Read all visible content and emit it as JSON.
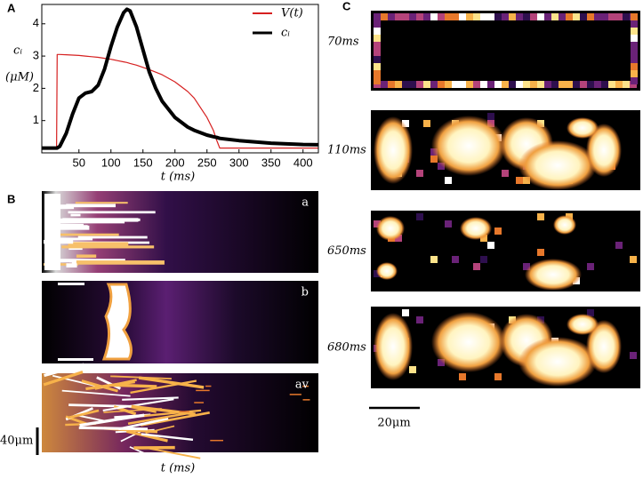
{
  "chart_data": {
    "type": "line",
    "y_label": "cᵢ",
    "y_unit": "(μM)",
    "x_label": "t (ms)",
    "x": [
      -8,
      0,
      15,
      16,
      20,
      30,
      40,
      50,
      60,
      70,
      80,
      90,
      100,
      110,
      120,
      125,
      130,
      140,
      150,
      160,
      170,
      180,
      200,
      220,
      230,
      250,
      260,
      265,
      270,
      300,
      350,
      400,
      424
    ],
    "series": [
      {
        "name": "V(t)",
        "color": "#d62020",
        "width": 1.2,
        "values": [
          0.15,
          0.15,
          0.15,
          3.05,
          3.05,
          3.04,
          3.03,
          3.02,
          3.0,
          2.98,
          2.96,
          2.93,
          2.9,
          2.86,
          2.82,
          2.8,
          2.77,
          2.72,
          2.65,
          2.58,
          2.5,
          2.42,
          2.2,
          1.9,
          1.7,
          1.1,
          0.7,
          0.4,
          0.15,
          0.15,
          0.15,
          0.15,
          0.15
        ]
      },
      {
        "name": "cᵢ",
        "color": "#000000",
        "width": 4,
        "values": [
          0.15,
          0.15,
          0.15,
          0.15,
          0.2,
          0.6,
          1.2,
          1.7,
          1.85,
          1.9,
          2.1,
          2.6,
          3.3,
          3.9,
          4.35,
          4.45,
          4.4,
          3.9,
          3.2,
          2.5,
          2.0,
          1.6,
          1.1,
          0.8,
          0.7,
          0.55,
          0.5,
          0.48,
          0.45,
          0.38,
          0.3,
          0.26,
          0.25
        ]
      }
    ],
    "xlim": [
      -8,
      424
    ],
    "ylim": [
      0,
      4.6
    ],
    "xticks": [
      50,
      100,
      150,
      200,
      250,
      300,
      350,
      400
    ],
    "yticks": [
      1,
      2,
      3,
      4
    ],
    "legend": "top-right"
  },
  "labels": {
    "panel_a": "A",
    "panel_b": "B",
    "panel_c": "C"
  },
  "panel_b": {
    "rows": [
      "a",
      "b",
      "av"
    ],
    "scale_bar": "40μm",
    "x_label": "t (ms)"
  },
  "panel_c": {
    "times": [
      "70ms",
      "110ms",
      "650ms",
      "680ms"
    ],
    "scale_bar": "20μm"
  }
}
